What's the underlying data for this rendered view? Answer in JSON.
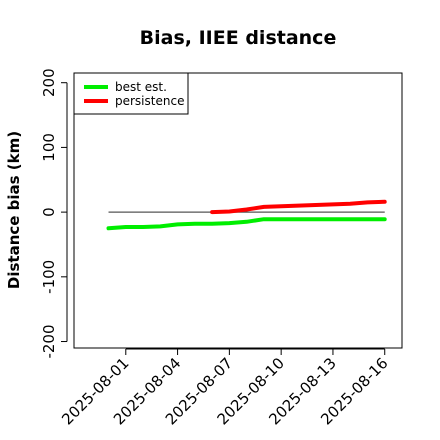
{
  "chart_data": {
    "type": "line",
    "title": "Bias, IIEE distance",
    "ylabel": "Distance bias (km)",
    "xlabel": "",
    "ylim": [
      -210,
      215
    ],
    "yticks": [
      -200,
      -100,
      0,
      100,
      200
    ],
    "yticklabels": [
      "-200",
      "-100",
      "0",
      "100",
      "200"
    ],
    "xlim": [
      "2025-07-29",
      "2025-08-17"
    ],
    "xticks": [
      "2025-08-01",
      "2025-08-04",
      "2025-08-07",
      "2025-08-10",
      "2025-08-13",
      "2025-08-16"
    ],
    "grid": false,
    "legend_position": "top-left",
    "reference_line": {
      "y": 0,
      "x_start": "2025-07-31",
      "x_end": "2025-08-16",
      "color": "#555555"
    },
    "series": [
      {
        "name": "best est.",
        "color": "#00ee00",
        "x": [
          "2025-07-31",
          "2025-08-01",
          "2025-08-02",
          "2025-08-03",
          "2025-08-04",
          "2025-08-05",
          "2025-08-06",
          "2025-08-07",
          "2025-08-08",
          "2025-08-09",
          "2025-08-10",
          "2025-08-11",
          "2025-08-12",
          "2025-08-13",
          "2025-08-14",
          "2025-08-15",
          "2025-08-16"
        ],
        "values": [
          -25,
          -23,
          -23,
          -22,
          -19,
          -18,
          -18,
          -17,
          -15,
          -11,
          -11,
          -11,
          -11,
          -11,
          -11,
          -11,
          -11
        ]
      },
      {
        "name": "persistence",
        "color": "#ff0000",
        "x": [
          "2025-08-06",
          "2025-08-07",
          "2025-08-08",
          "2025-08-09",
          "2025-08-10",
          "2025-08-11",
          "2025-08-12",
          "2025-08-13",
          "2025-08-14",
          "2025-08-15",
          "2025-08-16"
        ],
        "values": [
          0,
          1,
          4,
          8,
          9,
          10,
          11,
          12,
          13,
          15,
          16
        ]
      }
    ]
  }
}
